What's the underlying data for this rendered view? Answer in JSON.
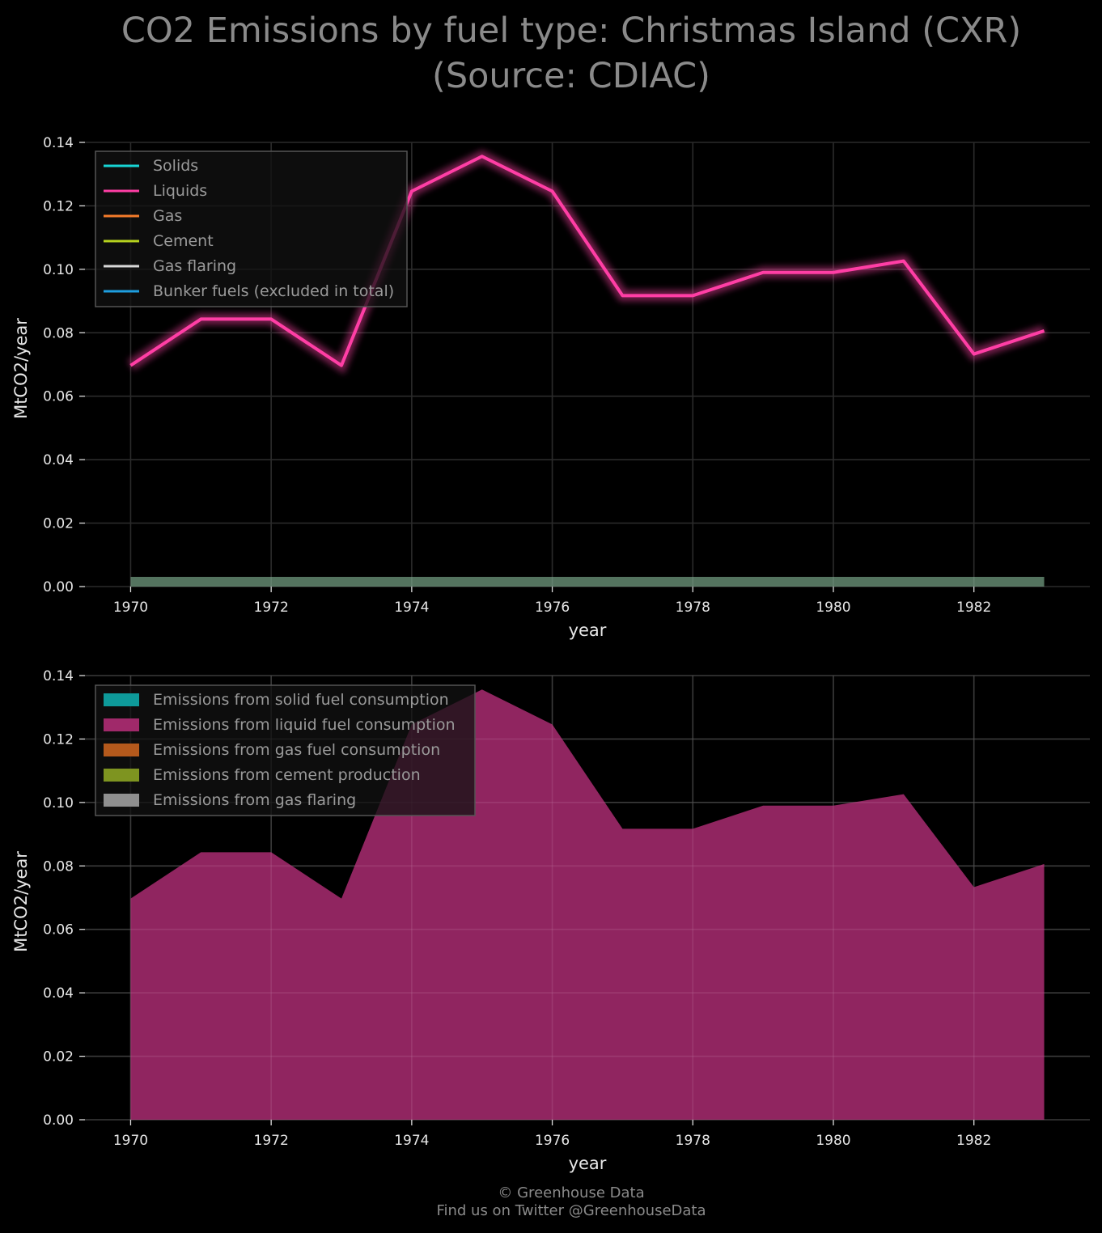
{
  "title": {
    "line1": "CO2 Emissions by fuel type: Christmas Island (CXR)",
    "line2": "(Source: CDIAC)"
  },
  "footer": {
    "line1": "© Greenhouse Data",
    "line2": "Find us on Twitter @GreenhouseData"
  },
  "chart_data": [
    {
      "type": "line",
      "xlabel": "year",
      "ylabel": "MtCO2/year",
      "xlim": [
        1969.35,
        1983.65
      ],
      "ylim": [
        0,
        0.14
      ],
      "xticks": [
        "1970",
        "1972",
        "1974",
        "1976",
        "1978",
        "1980",
        "1982"
      ],
      "yticks": [
        "0.00",
        "0.02",
        "0.04",
        "0.06",
        "0.08",
        "0.10",
        "0.12",
        "0.14"
      ],
      "grid": true,
      "legend_position": "top-left",
      "x": [
        1970,
        1971,
        1972,
        1973,
        1974,
        1975,
        1976,
        1977,
        1978,
        1979,
        1980,
        1981,
        1982,
        1983
      ],
      "series": [
        {
          "name": "Solids",
          "color": "#17d4d4",
          "values": [
            0,
            0,
            0,
            0,
            0,
            0,
            0,
            0,
            0,
            0,
            0,
            0,
            0,
            0
          ]
        },
        {
          "name": "Liquids",
          "color": "#ff3ea5",
          "values": [
            0.0697,
            0.0843,
            0.0843,
            0.0697,
            0.1246,
            0.1356,
            0.1246,
            0.0917,
            0.0917,
            0.099,
            0.099,
            0.1026,
            0.0733,
            0.0806
          ]
        },
        {
          "name": "Gas",
          "color": "#f47b2a",
          "values": [
            0,
            0,
            0,
            0,
            0,
            0,
            0,
            0,
            0,
            0,
            0,
            0,
            0,
            0
          ]
        },
        {
          "name": "Cement",
          "color": "#b5d11e",
          "values": [
            0,
            0,
            0,
            0,
            0,
            0,
            0,
            0,
            0,
            0,
            0,
            0,
            0,
            0
          ]
        },
        {
          "name": "Gas flaring",
          "color": "#d8d8d8",
          "values": [
            0,
            0,
            0,
            0,
            0,
            0,
            0,
            0,
            0,
            0,
            0,
            0,
            0,
            0
          ]
        },
        {
          "name": "Bunker fuels (excluded in total)",
          "color": "#1e9ee0",
          "values": [
            0,
            0,
            0,
            0,
            0,
            0,
            0,
            0,
            0,
            0,
            0,
            0,
            0,
            0
          ]
        }
      ]
    },
    {
      "type": "area",
      "xlabel": "year",
      "ylabel": "MtCO2/year",
      "xlim": [
        1969.35,
        1983.65
      ],
      "ylim": [
        0,
        0.14
      ],
      "xticks": [
        "1970",
        "1972",
        "1974",
        "1976",
        "1978",
        "1980",
        "1982"
      ],
      "yticks": [
        "0.00",
        "0.02",
        "0.04",
        "0.06",
        "0.08",
        "0.10",
        "0.12",
        "0.14"
      ],
      "grid": true,
      "legend_position": "top-left",
      "x": [
        1970,
        1971,
        1972,
        1973,
        1974,
        1975,
        1976,
        1977,
        1978,
        1979,
        1980,
        1981,
        1982,
        1983
      ],
      "series": [
        {
          "name": "Emissions from solid fuel consumption",
          "color": "#0e9a9a",
          "values": [
            0,
            0,
            0,
            0,
            0,
            0,
            0,
            0,
            0,
            0,
            0,
            0,
            0,
            0
          ]
        },
        {
          "name": "Emissions from liquid fuel consumption",
          "color": "#a0296a",
          "values": [
            0.0697,
            0.0843,
            0.0843,
            0.0697,
            0.1246,
            0.1356,
            0.1246,
            0.0917,
            0.0917,
            0.099,
            0.099,
            0.1026,
            0.0733,
            0.0806
          ]
        },
        {
          "name": "Emissions from gas fuel consumption",
          "color": "#b4591c",
          "values": [
            0,
            0,
            0,
            0,
            0,
            0,
            0,
            0,
            0,
            0,
            0,
            0,
            0,
            0
          ]
        },
        {
          "name": "Emissions from cement production",
          "color": "#7e9420",
          "values": [
            0,
            0,
            0,
            0,
            0,
            0,
            0,
            0,
            0,
            0,
            0,
            0,
            0,
            0
          ]
        },
        {
          "name": "Emissions from gas flaring",
          "color": "#8f8f8f",
          "values": [
            0,
            0,
            0,
            0,
            0,
            0,
            0,
            0,
            0,
            0,
            0,
            0,
            0,
            0
          ]
        }
      ]
    }
  ]
}
